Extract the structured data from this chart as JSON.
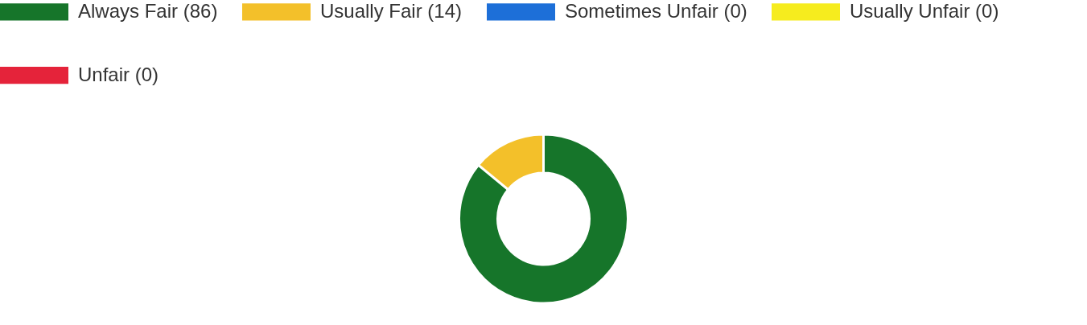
{
  "chart_data": {
    "type": "donut",
    "categories": [
      "Always Fair (86)",
      "Usually Fair (14)",
      "Sometimes Unfair (0)",
      "Usually Unfair (0)",
      "Unfair (0)"
    ],
    "values": [
      86,
      14,
      0,
      0,
      0
    ],
    "colors": [
      "#16752a",
      "#f3c02a",
      "#1d6fd8",
      "#f6ec1e",
      "#e5233a"
    ],
    "legend": "top"
  }
}
